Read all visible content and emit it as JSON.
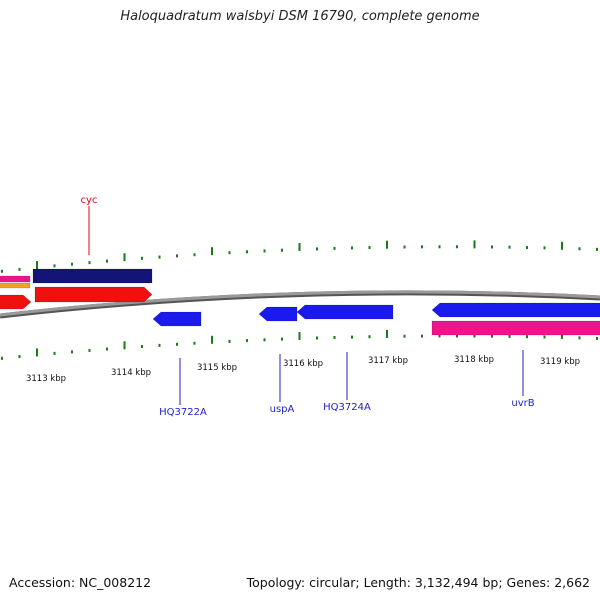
{
  "title": "Haloquadratum walsbyi DSM 16790, complete genome",
  "footer": {
    "accession": "Accession: NC_008212",
    "summary": "Topology: circular; Length: 3,132,494 bp; Genes: 2,662"
  },
  "scale_labels": [
    "3113 kbp",
    "3114 kbp",
    "3115 kbp",
    "3116 kbp",
    "3117 kbp",
    "3118 kbp",
    "3119 kbp"
  ],
  "gene_labels": [
    {
      "name": "cyc",
      "strand": "forward",
      "color": "#e8000b"
    },
    {
      "name": "HQ3722A",
      "strand": "reverse",
      "color": "#1f1fd0"
    },
    {
      "name": "uspA",
      "strand": "reverse",
      "color": "#1f1fd0"
    },
    {
      "name": "HQ3724A",
      "strand": "reverse",
      "color": "#1f1fd0"
    },
    {
      "name": "uvrB",
      "strand": "reverse",
      "color": "#1f1fd0"
    }
  ],
  "colors": {
    "backbone": "#8a8a8a",
    "ticks": "#1a7a1a",
    "cds_red": "#f01010",
    "cds_blue": "#1a1aef",
    "cds_navy": "#141478",
    "cds_pink": "#f0148c",
    "cds_orange": "#f5a020",
    "forward_label": "#e8000b",
    "reverse_label": "#1f1fd0"
  }
}
